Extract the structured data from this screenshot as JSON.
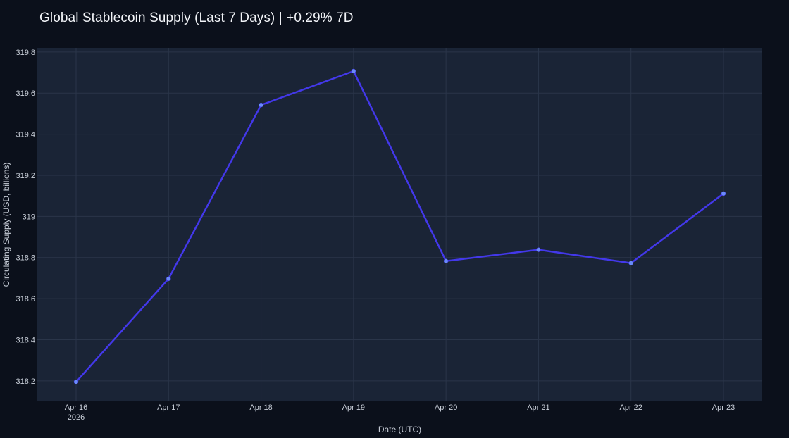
{
  "chart_data": {
    "type": "line",
    "title": "Global Stablecoin Supply (Last 7 Days) | +0.29% 7D",
    "xlabel": "Date (UTC)",
    "ylabel": "Circulating Supply (USD, billions)",
    "x_ticks": [
      {
        "label": "Apr 16",
        "sublabel": "2026"
      },
      {
        "label": "Apr 17",
        "sublabel": ""
      },
      {
        "label": "Apr 18",
        "sublabel": ""
      },
      {
        "label": "Apr 19",
        "sublabel": ""
      },
      {
        "label": "Apr 20",
        "sublabel": ""
      },
      {
        "label": "Apr 21",
        "sublabel": ""
      },
      {
        "label": "Apr 22",
        "sublabel": ""
      },
      {
        "label": "Apr 23",
        "sublabel": ""
      }
    ],
    "y_ticks": [
      "318.2",
      "318.4",
      "318.6",
      "318.8",
      "319",
      "319.2",
      "319.4",
      "319.6",
      "319.8"
    ],
    "ylim": [
      318.1,
      319.82
    ],
    "grid": true,
    "series": [
      {
        "color": "#4338ea",
        "marker_color": "#6a8cf7",
        "points": [
          {
            "x": "2026-04-16",
            "y": 318.195
          },
          {
            "x": "2026-04-17",
            "y": 318.697
          },
          {
            "x": "2026-04-18",
            "y": 319.542
          },
          {
            "x": "2026-04-19",
            "y": 319.707
          },
          {
            "x": "2026-04-20",
            "y": 318.783
          },
          {
            "x": "2026-04-21",
            "y": 318.838
          },
          {
            "x": "2026-04-22",
            "y": 318.773
          },
          {
            "x": "2026-04-23",
            "y": 319.111
          }
        ]
      }
    ],
    "colors": {
      "page_background": "#0b101b",
      "plot_background": "#1a2436",
      "grid": "#2a3549"
    }
  }
}
